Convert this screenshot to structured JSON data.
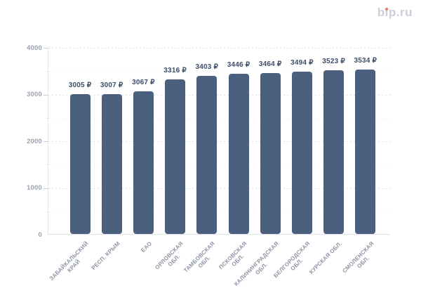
{
  "logo": {
    "text": "bip.ru",
    "dot_color": "#ee7a5b"
  },
  "chart_data": {
    "type": "bar",
    "title": "",
    "categories": [
      "ЗАБАЙКАЛЬСКИЙ КРАЙ",
      "РЕСП. КРЫМ",
      "ЕАО",
      "ОРЛОВСКАЯ ОБЛ.",
      "ТАМБОВСКАЯ ОБЛ.",
      "ПСКОВСКАЯ ОБЛ.",
      "КАЛИНИНГРАДСКАЯ ОБЛ.",
      "БЕЛГОРОДСКАЯ ОБЛ.",
      "КУРСКАЯ ОБЛ.",
      "СМОЛЕНСКАЯ ОБЛ."
    ],
    "category_lines": [
      [
        "ЗАБАЙКАЛЬСКИЙ",
        "КРАЙ"
      ],
      [
        "РЕСП. КРЫМ"
      ],
      [
        "ЕАО"
      ],
      [
        "ОРЛОВСКАЯ",
        "ОБЛ."
      ],
      [
        "ТАМБОВСКАЯ",
        "ОБЛ."
      ],
      [
        "ПСКОВСКАЯ",
        "ОБЛ."
      ],
      [
        "КАЛИНИНГРАДСКАЯ",
        "ОБЛ."
      ],
      [
        "БЕЛГОРОДСКАЯ",
        "ОБЛ."
      ],
      [
        "КУРСКАЯ ОБЛ."
      ],
      [
        "СМОЛЕНСКАЯ",
        "ОБЛ."
      ]
    ],
    "values": [
      3005,
      3007,
      3067,
      3316,
      3403,
      3446,
      3464,
      3494,
      3523,
      3534
    ],
    "value_labels": [
      "3005 ₽",
      "3007 ₽",
      "3067 ₽",
      "3316 ₽",
      "3403 ₽",
      "3446 ₽",
      "3464 ₽",
      "3494 ₽",
      "3523 ₽",
      "3534 ₽"
    ],
    "currency_suffix": "₽",
    "xlabel": "",
    "ylabel": "",
    "ylim": [
      0,
      4000
    ],
    "y_ticks": [
      0,
      1000,
      2000,
      3000,
      4000
    ],
    "y_minor_ticks": [
      500,
      1500,
      2500,
      3500
    ],
    "grid": "horizontal dotted",
    "legend": "none",
    "bar_color": "#4b5f7e",
    "value_label_color": "#3d4d6a",
    "axis_label_color": "#9aa1af"
  }
}
